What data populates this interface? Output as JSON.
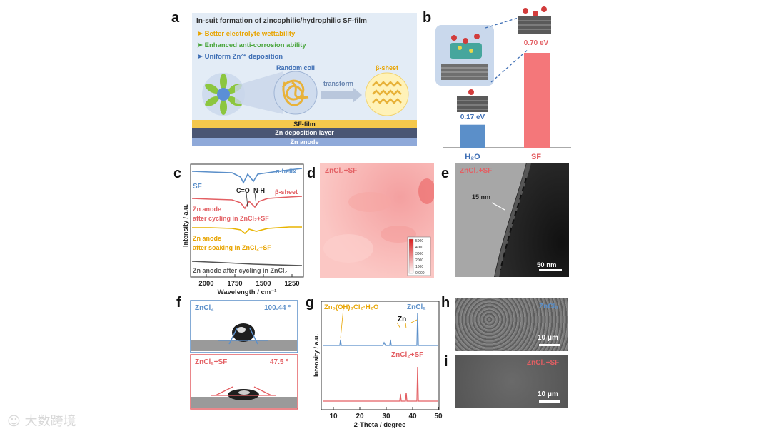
{
  "panels": {
    "a": {
      "label": "a",
      "title": "In-suit formation of zincophilic/hydrophilic  SF-film",
      "bullets": [
        {
          "text": "Better electrolyte wettability",
          "color": "#e8a400"
        },
        {
          "text": "Enhanced anti-corrosion ability",
          "color": "#4aa63c"
        },
        {
          "text": "Uniform Zn²⁺ deposition",
          "color": "#3f6fb5"
        }
      ],
      "random_coil": "Random coil",
      "transform": "transform",
      "beta_sheet": "β-sheet",
      "layers": {
        "sf_film": "SF-film",
        "deposition": "Zn deposition layer",
        "anode": "Zn anode"
      }
    },
    "b": {
      "label": "b",
      "h2o_energy": "0.17 eV",
      "sf_energy": "0.70 eV",
      "x_h2o": "H₂O",
      "x_sf": "SF",
      "colors": {
        "h2o": "#5b8fc9",
        "sf": "#f4777a"
      }
    },
    "c": {
      "label": "c",
      "ylabel": "Intensity / a.u.",
      "xlabel": "Wavelength / cm⁻¹",
      "ticks": [
        "2000",
        "1750",
        "1500",
        "1250"
      ],
      "alpha_helix": "α-helix",
      "beta_sheet": "β-sheet",
      "sf": "SF",
      "co": "C=O",
      "nh": "N-H",
      "cycling_zncl2sf_1": "Zn anode",
      "cycling_zncl2sf_2": "after cycling in ZnCl₂+SF",
      "soaking_1": "Zn anode",
      "soaking_2": "after soaking in ZnCl₂+SF",
      "cycling_zncl2": "Zn anode after cycling in ZnCl₂"
    },
    "d": {
      "label": "d",
      "tag": "ZnCl₂+SF",
      "scale": [
        "5000",
        "4000",
        "3000",
        "2000",
        "1000",
        "0.000"
      ]
    },
    "e": {
      "label": "e",
      "tag": "ZnCl₂+SF",
      "thickness": "15 nm",
      "scalebar": "50 nm"
    },
    "f": {
      "label": "f",
      "top_name": "ZnCl₂",
      "top_angle": "100.44 °",
      "bottom_name": "ZnCl₂+SF",
      "bottom_angle": "47.5 °"
    },
    "g": {
      "label": "g",
      "ylabel": "Intensity / a.u.",
      "xlabel": "2-Theta / degree",
      "ticks": [
        "10",
        "20",
        "30",
        "40",
        "50"
      ],
      "byproduct": "Zn₅(OH)₈Cl₂·H₂O",
      "zn": "Zn",
      "top_name": "ZnCl₂",
      "bottom_name": "ZnCl₂+SF"
    },
    "h": {
      "label": "h",
      "tag": "ZnCl₂",
      "scalebar": "10 μm"
    },
    "i": {
      "label": "i",
      "tag": "ZnCl₂+SF",
      "scalebar": "10 μm"
    }
  },
  "watermark": "大数跨境"
}
